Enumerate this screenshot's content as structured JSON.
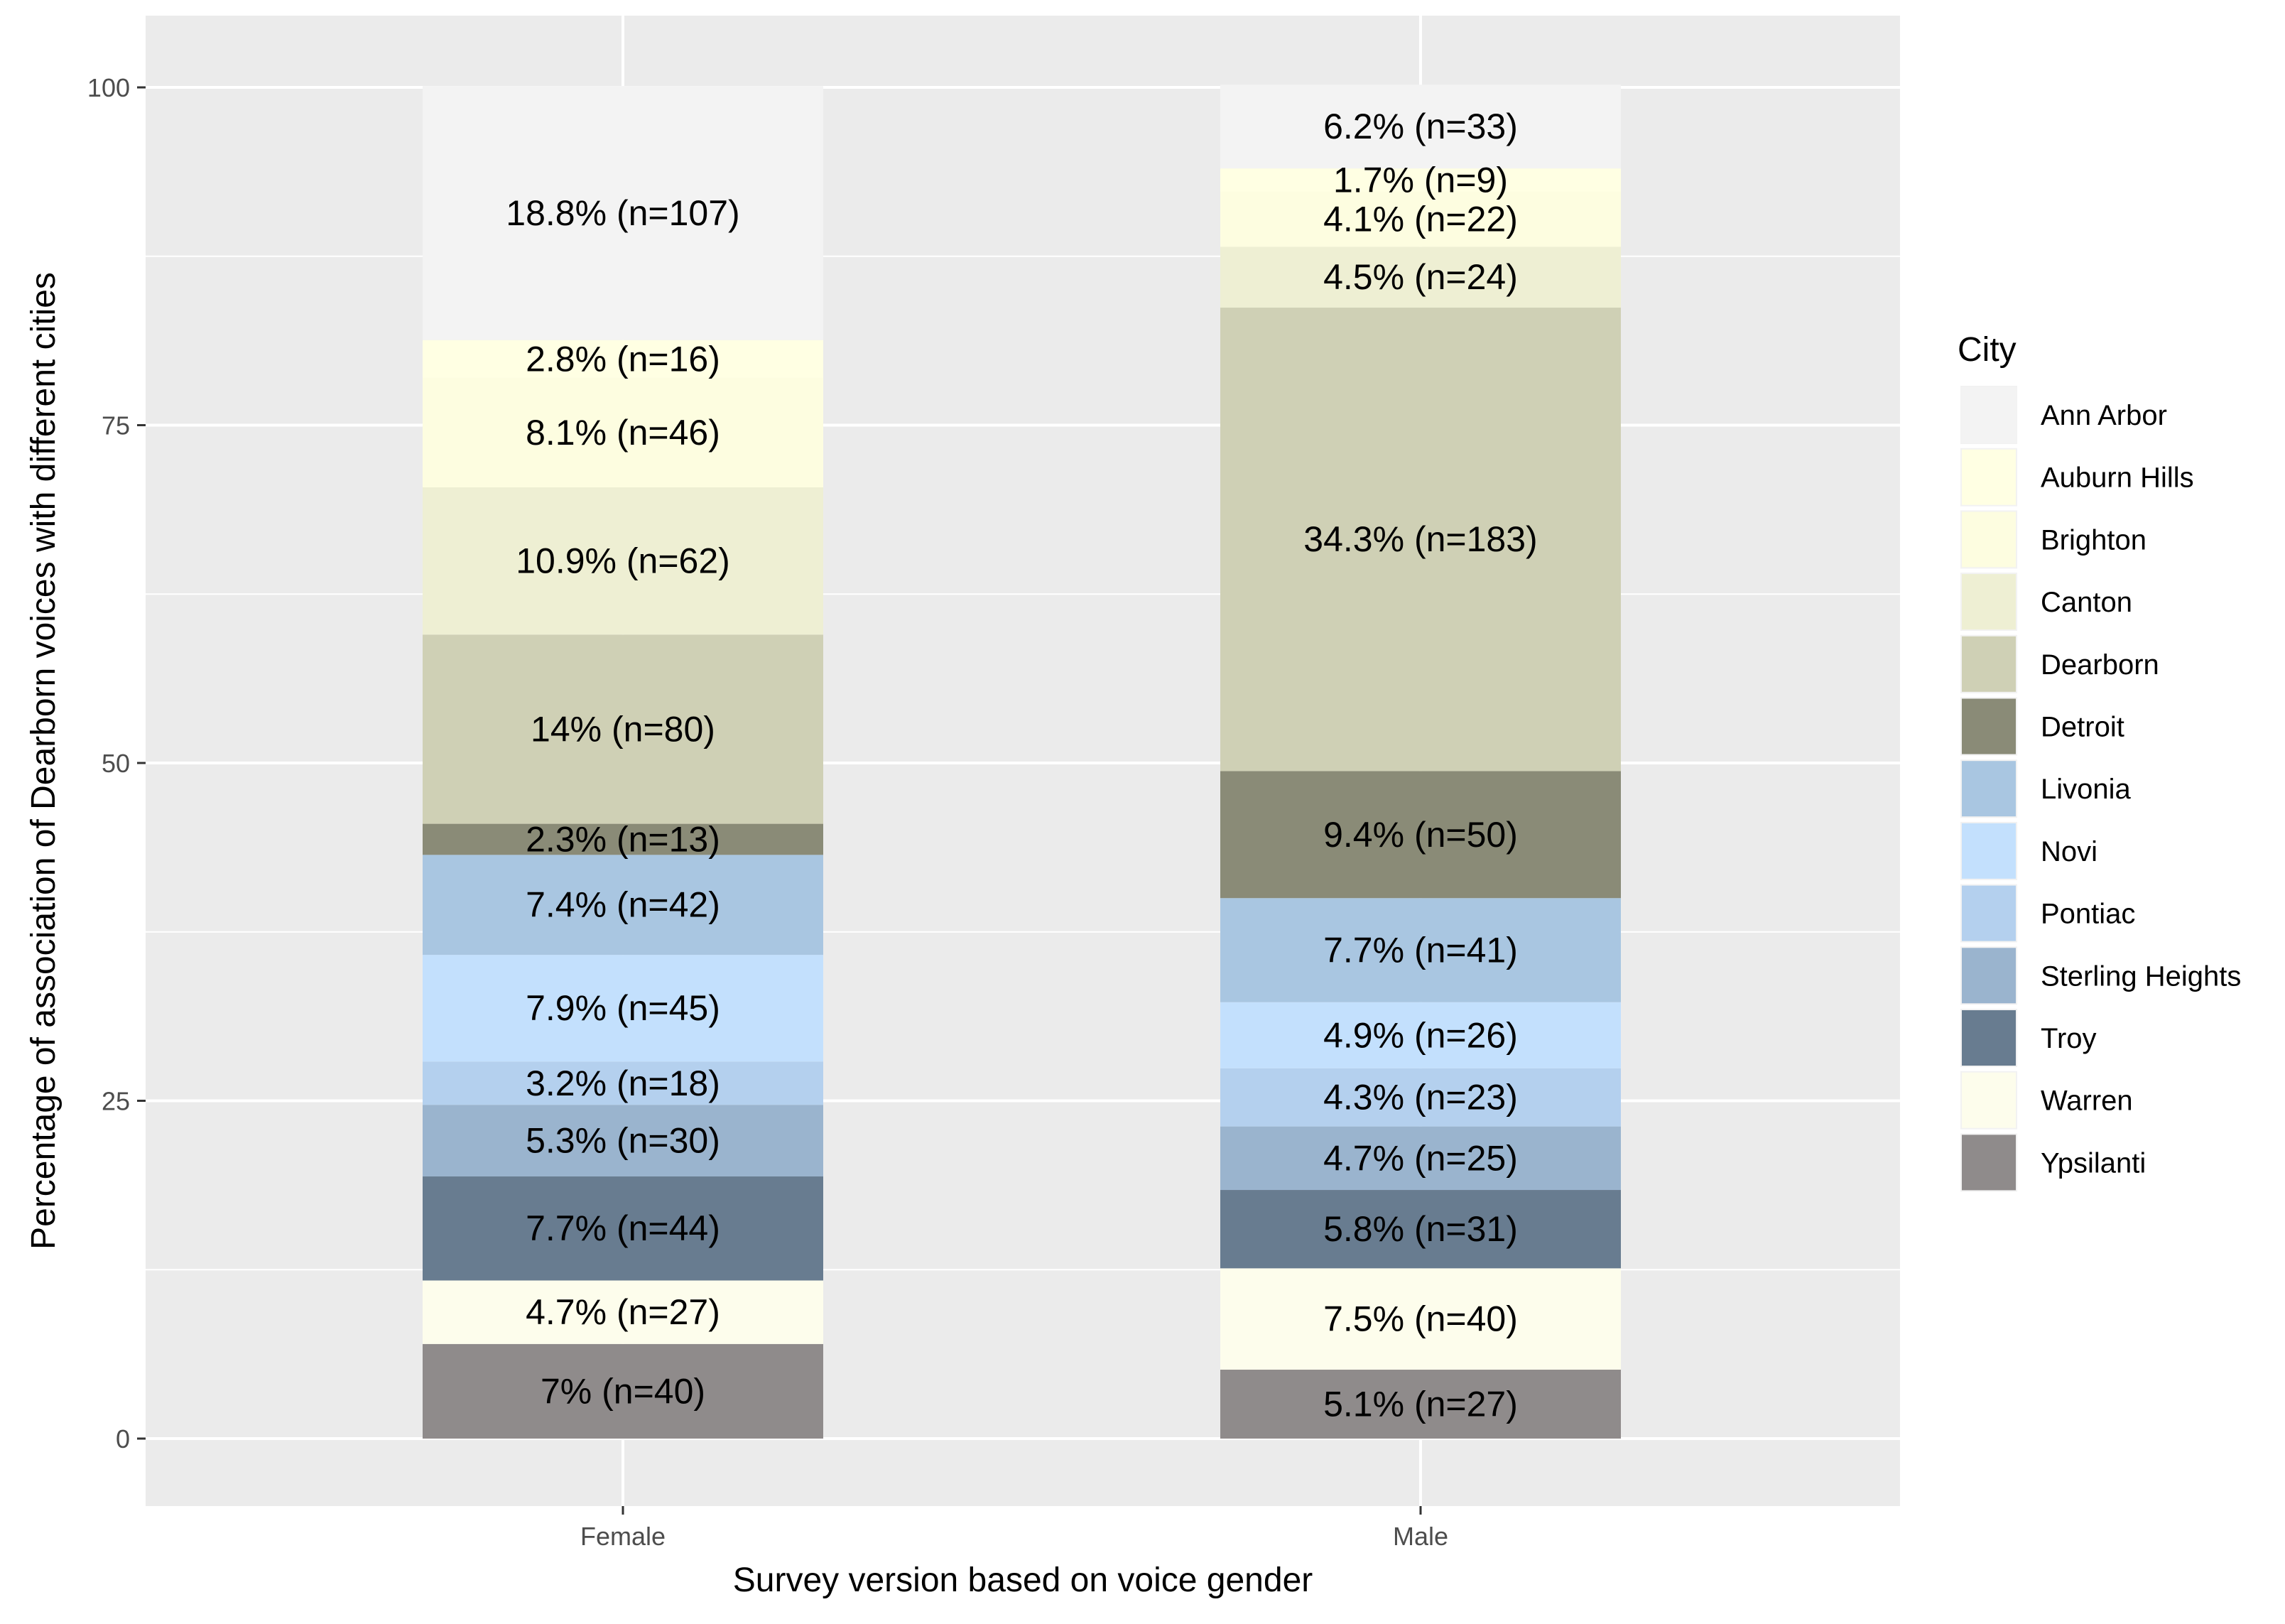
{
  "chart_data": {
    "type": "bar",
    "stacked": true,
    "title": "",
    "xlabel": "Survey version based on voice gender",
    "ylabel": "Percentage of association of Dearborn voices with different cities",
    "ylim": [
      0,
      100
    ],
    "yticks": [
      0,
      25,
      50,
      75,
      100
    ],
    "grid": true,
    "legend": {
      "title": "City",
      "position": "right"
    },
    "categories": [
      "Female",
      "Male"
    ],
    "series": [
      {
        "name": "Ann Arbor",
        "color": "#f3f3f3",
        "values": [
          18.8,
          6.2
        ],
        "labels": [
          "18.8% (n=107)",
          "6.2% (n=33)"
        ]
      },
      {
        "name": "Auburn Hills",
        "color": "#ffffe3",
        "values": [
          2.8,
          1.7
        ],
        "labels": [
          "2.8% (n=16)",
          "1.7% (n=9)"
        ]
      },
      {
        "name": "Brighton",
        "color": "#fdfde0",
        "values": [
          8.1,
          4.1
        ],
        "labels": [
          "8.1% (n=46)",
          "4.1% (n=22)"
        ]
      },
      {
        "name": "Canton",
        "color": "#eeefd3",
        "values": [
          10.9,
          4.5
        ],
        "labels": [
          "10.9% (n=62)",
          "4.5% (n=24)"
        ]
      },
      {
        "name": "Dearborn",
        "color": "#cfd0b5",
        "values": [
          14.0,
          34.3
        ],
        "labels": [
          "14% (n=80)",
          "34.3% (n=183)"
        ]
      },
      {
        "name": "Detroit",
        "color": "#8a8b77",
        "values": [
          2.3,
          9.4
        ],
        "labels": [
          "2.3% (n=13)",
          "9.4% (n=50)"
        ]
      },
      {
        "name": "Livonia",
        "color": "#a9c6e1",
        "values": [
          7.4,
          7.7
        ],
        "labels": [
          "7.4% (n=42)",
          "7.7% (n=41)"
        ]
      },
      {
        "name": "Novi",
        "color": "#c3e0fd",
        "values": [
          7.9,
          4.9
        ],
        "labels": [
          "7.9% (n=45)",
          "4.9% (n=26)"
        ]
      },
      {
        "name": "Pontiac",
        "color": "#b4d0ee",
        "values": [
          3.2,
          4.3
        ],
        "labels": [
          "3.2% (n=18)",
          "4.3% (n=23)"
        ]
      },
      {
        "name": "Sterling Heights",
        "color": "#9ab4ce",
        "values": [
          5.3,
          4.7
        ],
        "labels": [
          "5.3% (n=30)",
          "4.7% (n=25)"
        ]
      },
      {
        "name": "Troy",
        "color": "#687c90",
        "values": [
          7.7,
          5.8
        ],
        "labels": [
          "7.7% (n=44)",
          "5.8% (n=31)"
        ]
      },
      {
        "name": "Warren",
        "color": "#fdfdec",
        "values": [
          4.7,
          7.5
        ],
        "labels": [
          "4.7% (n=27)",
          "7.5% (n=40)"
        ]
      },
      {
        "name": "Ypsilanti",
        "color": "#8f8b8b",
        "values": [
          7.0,
          5.1
        ],
        "labels": [
          "7% (n=40)",
          "5.1% (n=27)"
        ]
      }
    ]
  }
}
